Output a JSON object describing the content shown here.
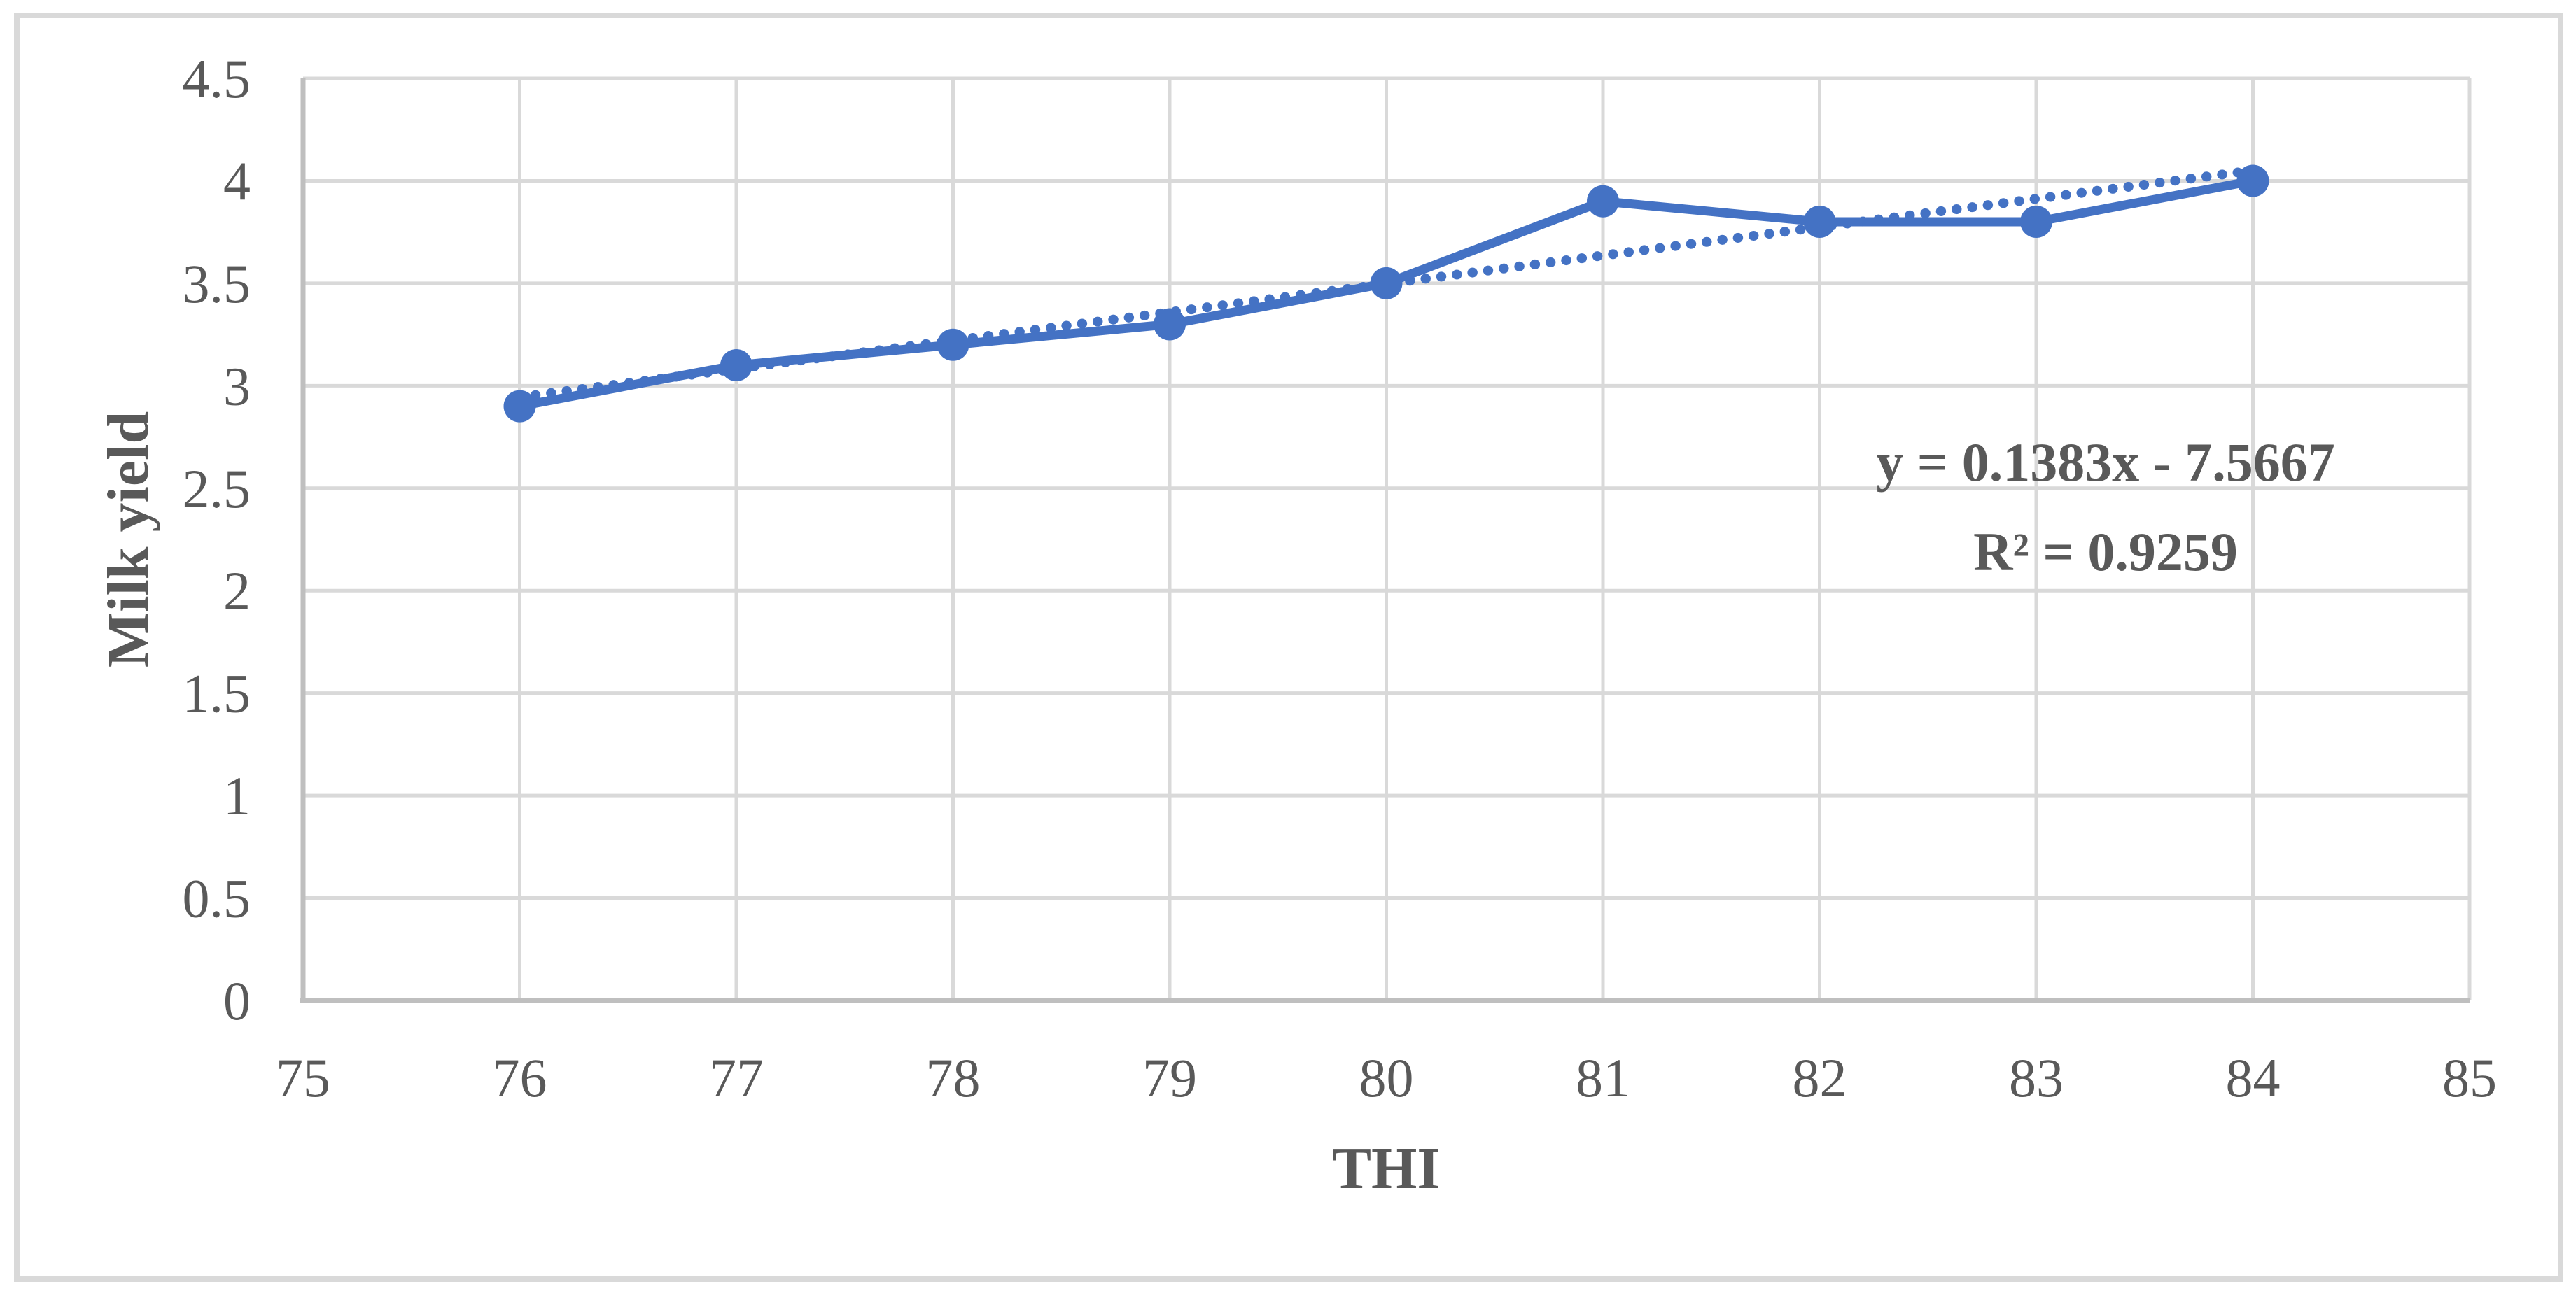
{
  "figure": {
    "description": "Line chart of milk yield versus temperature-humidity index (THI) with dotted linear trendline"
  },
  "colors": {
    "series_blue": "#4472C4",
    "gridline": "#D9D9D9",
    "axis_line": "#BFBFBF",
    "text": "#595959",
    "figure_border": "#D9D9D9",
    "background": "#FFFFFF"
  },
  "chart_data": {
    "type": "line",
    "title": "",
    "xlabel": "THI",
    "ylabel": "Milk yield",
    "x": [
      76,
      77,
      78,
      79,
      80,
      81,
      82,
      83,
      84
    ],
    "series": [
      {
        "name": "Milk yield",
        "values": [
          2.9,
          3.1,
          3.2,
          3.3,
          3.5,
          3.9,
          3.8,
          3.8,
          4.0
        ],
        "color": "#4472C4",
        "marker": "circle",
        "line_style": "solid"
      }
    ],
    "trendline": {
      "type": "linear",
      "slope": 0.1383,
      "intercept": -7.5667,
      "x_start": 76,
      "x_end": 84,
      "equation_label": "y = 0.1383x - 7.5667",
      "r2_label": "R² = 0.9259",
      "color": "#4472C4",
      "line_style": "dotted"
    },
    "xlim": [
      75,
      85
    ],
    "ylim": [
      0,
      4.5
    ],
    "x_ticks": [
      "75",
      "76",
      "77",
      "78",
      "79",
      "80",
      "81",
      "82",
      "83",
      "84",
      "85"
    ],
    "y_ticks": [
      "0",
      "0.5",
      "1",
      "1.5",
      "2",
      "2.5",
      "3",
      "3.5",
      "4",
      "4.5"
    ],
    "grid": true,
    "legend": "none",
    "annotation_position": "right-middle"
  }
}
